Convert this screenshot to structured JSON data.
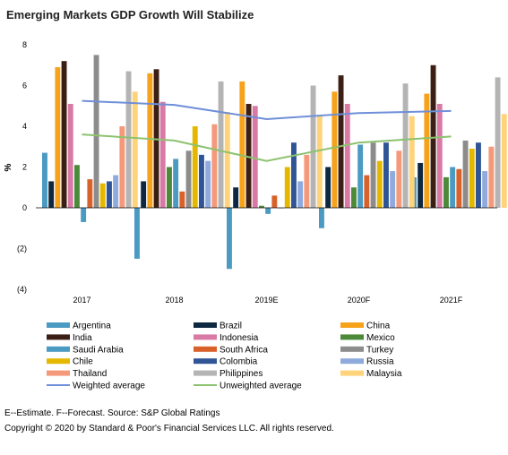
{
  "title": "Emerging Markets GDP Growth Will Stabilize",
  "footnote": "E--Estimate.  F--Forecast. Source: S&P Global Ratings",
  "copyright": "Copyright © 2020 by Standard & Poor's Financial Services LLC. All rights reserved.",
  "chart_data": {
    "type": "bar",
    "title": "Emerging Markets GDP Growth Will Stabilize",
    "ylabel": "%",
    "xlabel": "",
    "ylim": [
      -4,
      8
    ],
    "yticks": [
      {
        "value": 8,
        "label": "8"
      },
      {
        "value": 6,
        "label": "6"
      },
      {
        "value": 4,
        "label": "4"
      },
      {
        "value": 2,
        "label": "2"
      },
      {
        "value": 0,
        "label": "0"
      },
      {
        "value": -2,
        "label": "(2)"
      },
      {
        "value": -4,
        "label": "(4)"
      }
    ],
    "categories": [
      "2017",
      "2018",
      "2019E",
      "2020F",
      "2021F"
    ],
    "series": [
      {
        "name": "Argentina",
        "color": "#4A9AC2",
        "values": [
          2.7,
          -2.5,
          -3.0,
          -1.0,
          1.5
        ]
      },
      {
        "name": "Brazil",
        "color": "#0E2841",
        "values": [
          1.3,
          1.3,
          1.0,
          2.0,
          2.2
        ]
      },
      {
        "name": "China",
        "color": "#F7A21B",
        "values": [
          6.9,
          6.6,
          6.2,
          5.7,
          5.6
        ]
      },
      {
        "name": "India",
        "color": "#3B1F14",
        "values": [
          7.2,
          6.8,
          5.1,
          6.5,
          7.0
        ]
      },
      {
        "name": "Indonesia",
        "color": "#D97AA6",
        "values": [
          5.1,
          5.2,
          5.0,
          5.1,
          5.1
        ]
      },
      {
        "name": "Mexico",
        "color": "#4C8A3A",
        "values": [
          2.1,
          2.0,
          0.1,
          1.0,
          1.5
        ]
      },
      {
        "name": "Saudi Arabia",
        "color": "#4A9AC2",
        "values": [
          -0.7,
          2.4,
          -0.3,
          3.1,
          2.0
        ]
      },
      {
        "name": "South Africa",
        "color": "#D9622B",
        "values": [
          1.4,
          0.8,
          0.6,
          1.6,
          1.9
        ]
      },
      {
        "name": "Turkey",
        "color": "#8C8C8C",
        "values": [
          7.5,
          2.8,
          0.0,
          3.2,
          3.3
        ]
      },
      {
        "name": "Chile",
        "color": "#E5B800",
        "values": [
          1.2,
          4.0,
          2.0,
          2.3,
          2.9
        ]
      },
      {
        "name": "Colombia",
        "color": "#2F5597",
        "values": [
          1.3,
          2.6,
          3.2,
          3.2,
          3.2
        ]
      },
      {
        "name": "Russia",
        "color": "#8FAADC",
        "values": [
          1.6,
          2.3,
          1.3,
          1.8,
          1.8
        ]
      },
      {
        "name": "Thailand",
        "color": "#F4997A",
        "values": [
          4.0,
          4.1,
          2.6,
          2.8,
          3.0
        ]
      },
      {
        "name": "Philippines",
        "color": "#B4B4B4",
        "values": [
          6.7,
          6.2,
          6.0,
          6.1,
          6.4
        ]
      },
      {
        "name": "Malaysia",
        "color": "#FFD37A",
        "values": [
          5.7,
          4.7,
          4.5,
          4.5,
          4.6
        ]
      }
    ],
    "lines": [
      {
        "name": "Weighted average",
        "color": "#6F8FD8",
        "values": [
          5.25,
          5.05,
          4.35,
          4.65,
          4.75
        ]
      },
      {
        "name": "Unweighted average",
        "color": "#8DC26F",
        "values": [
          3.6,
          3.3,
          2.3,
          3.2,
          3.5
        ]
      }
    ],
    "grid": false,
    "legend_position": "bottom"
  }
}
